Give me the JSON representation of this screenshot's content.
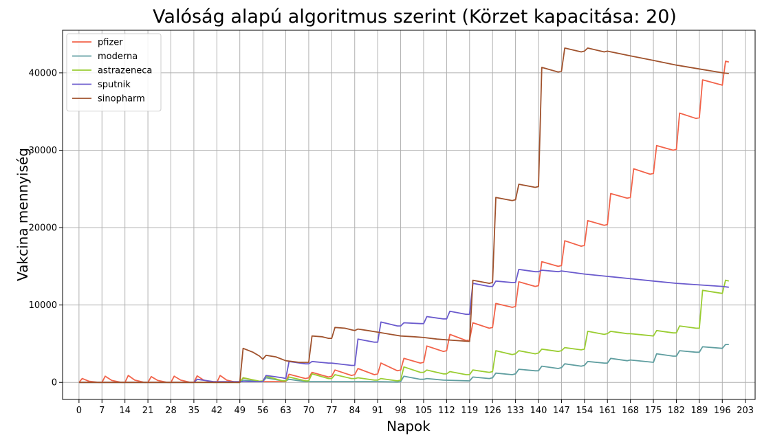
{
  "chart_data": {
    "type": "line",
    "title": "Valóság alapú algoritmus szerint (Körzet kapacitása: 20)",
    "xlabel": "Napok",
    "ylabel": "Vakcina mennyiség",
    "xlim": [
      -5,
      206
    ],
    "ylim": [
      -2200,
      45500
    ],
    "grid": true,
    "legend_position": "top-left",
    "x_ticks": [
      0,
      7,
      14,
      21,
      28,
      35,
      42,
      49,
      56,
      63,
      70,
      77,
      84,
      91,
      98,
      105,
      112,
      119,
      126,
      133,
      140,
      147,
      154,
      161,
      168,
      175,
      182,
      189,
      196,
      203
    ],
    "y_ticks": [
      0,
      10000,
      20000,
      30000,
      40000
    ],
    "series": [
      {
        "name": "pfizer",
        "color": "#f2634a",
        "points": [
          [
            0,
            0
          ],
          [
            1,
            500
          ],
          [
            3,
            150
          ],
          [
            6,
            0
          ],
          [
            7,
            0
          ],
          [
            8,
            800
          ],
          [
            10,
            250
          ],
          [
            13,
            0
          ],
          [
            14,
            0
          ],
          [
            15,
            900
          ],
          [
            17,
            300
          ],
          [
            20,
            0
          ],
          [
            21,
            0
          ],
          [
            22,
            750
          ],
          [
            24,
            250
          ],
          [
            27,
            0
          ],
          [
            28,
            0
          ],
          [
            29,
            800
          ],
          [
            31,
            300
          ],
          [
            34,
            0
          ],
          [
            35,
            0
          ],
          [
            36,
            850
          ],
          [
            38,
            300
          ],
          [
            41,
            0
          ],
          [
            42,
            0
          ],
          [
            43,
            900
          ],
          [
            45,
            300
          ],
          [
            48,
            0
          ],
          [
            49,
            0
          ],
          [
            50,
            600
          ],
          [
            55,
            100
          ],
          [
            63,
            100
          ],
          [
            64,
            1050
          ],
          [
            69,
            500
          ],
          [
            70,
            600
          ],
          [
            71,
            1300
          ],
          [
            76,
            700
          ],
          [
            77,
            800
          ],
          [
            78,
            1600
          ],
          [
            83,
            900
          ],
          [
            84,
            1000
          ],
          [
            85,
            1800
          ],
          [
            90,
            1000
          ],
          [
            91,
            1100
          ],
          [
            92,
            2500
          ],
          [
            97,
            1500
          ],
          [
            98,
            1600
          ],
          [
            99,
            3100
          ],
          [
            104,
            2500
          ],
          [
            105,
            2600
          ],
          [
            106,
            4700
          ],
          [
            111,
            4000
          ],
          [
            112,
            4100
          ],
          [
            113,
            6200
          ],
          [
            118,
            5400
          ],
          [
            119,
            5500
          ],
          [
            120,
            7700
          ],
          [
            125,
            7000
          ],
          [
            126,
            7100
          ],
          [
            127,
            10200
          ],
          [
            132,
            9700
          ],
          [
            133,
            9800
          ],
          [
            134,
            13000
          ],
          [
            139,
            12400
          ],
          [
            140,
            12500
          ],
          [
            141,
            15600
          ],
          [
            146,
            15000
          ],
          [
            147,
            15100
          ],
          [
            148,
            18300
          ],
          [
            153,
            17600
          ],
          [
            154,
            17700
          ],
          [
            155,
            20900
          ],
          [
            160,
            20300
          ],
          [
            161,
            20400
          ],
          [
            162,
            24400
          ],
          [
            167,
            23800
          ],
          [
            168,
            23900
          ],
          [
            169,
            27600
          ],
          [
            174,
            26900
          ],
          [
            175,
            27000
          ],
          [
            176,
            30600
          ],
          [
            181,
            30000
          ],
          [
            182,
            30100
          ],
          [
            183,
            34800
          ],
          [
            188,
            34100
          ],
          [
            189,
            34200
          ],
          [
            190,
            39100
          ],
          [
            196,
            38400
          ],
          [
            197,
            41500
          ],
          [
            198,
            41400
          ]
        ]
      },
      {
        "name": "moderna",
        "color": "#5f9ea0",
        "points": [
          [
            0,
            0
          ],
          [
            49,
            0
          ],
          [
            50,
            300
          ],
          [
            55,
            100
          ],
          [
            56,
            100
          ],
          [
            57,
            600
          ],
          [
            62,
            200
          ],
          [
            63,
            200
          ],
          [
            64,
            400
          ],
          [
            69,
            100
          ],
          [
            70,
            100
          ],
          [
            77,
            100
          ],
          [
            84,
            100
          ],
          [
            91,
            100
          ],
          [
            97,
            50
          ],
          [
            98,
            100
          ],
          [
            99,
            800
          ],
          [
            104,
            400
          ],
          [
            105,
            400
          ],
          [
            106,
            500
          ],
          [
            111,
            300
          ],
          [
            119,
            200
          ],
          [
            120,
            700
          ],
          [
            125,
            500
          ],
          [
            126,
            600
          ],
          [
            127,
            1200
          ],
          [
            132,
            1000
          ],
          [
            133,
            1100
          ],
          [
            134,
            1700
          ],
          [
            139,
            1500
          ],
          [
            140,
            1500
          ],
          [
            141,
            2100
          ],
          [
            146,
            1800
          ],
          [
            147,
            1900
          ],
          [
            148,
            2400
          ],
          [
            153,
            2100
          ],
          [
            154,
            2200
          ],
          [
            155,
            2700
          ],
          [
            160,
            2500
          ],
          [
            161,
            2500
          ],
          [
            162,
            3100
          ],
          [
            167,
            2800
          ],
          [
            168,
            2900
          ],
          [
            175,
            2600
          ],
          [
            176,
            3700
          ],
          [
            181,
            3400
          ],
          [
            182,
            3400
          ],
          [
            183,
            4100
          ],
          [
            188,
            3900
          ],
          [
            189,
            3900
          ],
          [
            190,
            4600
          ],
          [
            196,
            4400
          ],
          [
            197,
            4900
          ],
          [
            198,
            4900
          ]
        ]
      },
      {
        "name": "astrazeneca",
        "color": "#9acd32",
        "points": [
          [
            0,
            0
          ],
          [
            49,
            0
          ],
          [
            50,
            600
          ],
          [
            55,
            150
          ],
          [
            56,
            200
          ],
          [
            57,
            800
          ],
          [
            62,
            200
          ],
          [
            63,
            200
          ],
          [
            64,
            700
          ],
          [
            69,
            200
          ],
          [
            70,
            200
          ],
          [
            71,
            1100
          ],
          [
            76,
            500
          ],
          [
            77,
            500
          ],
          [
            78,
            1000
          ],
          [
            83,
            500
          ],
          [
            84,
            500
          ],
          [
            85,
            600
          ],
          [
            90,
            300
          ],
          [
            91,
            300
          ],
          [
            92,
            500
          ],
          [
            97,
            200
          ],
          [
            98,
            300
          ],
          [
            99,
            2000
          ],
          [
            104,
            1300
          ],
          [
            105,
            1300
          ],
          [
            106,
            1600
          ],
          [
            111,
            1100
          ],
          [
            112,
            1100
          ],
          [
            113,
            1400
          ],
          [
            118,
            1000
          ],
          [
            119,
            1000
          ],
          [
            120,
            1600
          ],
          [
            125,
            1300
          ],
          [
            126,
            1400
          ],
          [
            127,
            4100
          ],
          [
            132,
            3600
          ],
          [
            133,
            3700
          ],
          [
            134,
            4100
          ],
          [
            139,
            3700
          ],
          [
            140,
            3800
          ],
          [
            141,
            4300
          ],
          [
            146,
            4000
          ],
          [
            147,
            4100
          ],
          [
            148,
            4500
          ],
          [
            153,
            4200
          ],
          [
            154,
            4300
          ],
          [
            155,
            6600
          ],
          [
            160,
            6200
          ],
          [
            161,
            6300
          ],
          [
            162,
            6600
          ],
          [
            167,
            6300
          ],
          [
            168,
            6300
          ],
          [
            175,
            6000
          ],
          [
            176,
            6700
          ],
          [
            181,
            6400
          ],
          [
            182,
            6400
          ],
          [
            183,
            7300
          ],
          [
            188,
            7000
          ],
          [
            189,
            7000
          ],
          [
            190,
            11900
          ],
          [
            196,
            11500
          ],
          [
            197,
            13200
          ],
          [
            198,
            13100
          ]
        ]
      },
      {
        "name": "sputnik",
        "color": "#6a5acd",
        "points": [
          [
            0,
            0
          ],
          [
            35,
            0
          ],
          [
            36,
            400
          ],
          [
            41,
            100
          ],
          [
            42,
            100
          ],
          [
            49,
            100
          ],
          [
            56,
            100
          ],
          [
            57,
            900
          ],
          [
            62,
            600
          ],
          [
            63,
            500
          ],
          [
            64,
            2700
          ],
          [
            69,
            2400
          ],
          [
            70,
            2400
          ],
          [
            71,
            2700
          ],
          [
            76,
            2500
          ],
          [
            77,
            2500
          ],
          [
            83,
            2200
          ],
          [
            84,
            2200
          ],
          [
            85,
            5600
          ],
          [
            90,
            5200
          ],
          [
            91,
            5200
          ],
          [
            92,
            7800
          ],
          [
            97,
            7300
          ],
          [
            98,
            7300
          ],
          [
            99,
            7700
          ],
          [
            104,
            7600
          ],
          [
            105,
            7600
          ],
          [
            106,
            8500
          ],
          [
            111,
            8200
          ],
          [
            112,
            8200
          ],
          [
            113,
            9200
          ],
          [
            118,
            8800
          ],
          [
            119,
            8800
          ],
          [
            120,
            12800
          ],
          [
            125,
            12400
          ],
          [
            126,
            12400
          ],
          [
            127,
            13100
          ],
          [
            132,
            12900
          ],
          [
            133,
            12900
          ],
          [
            134,
            14600
          ],
          [
            139,
            14300
          ],
          [
            140,
            14300
          ],
          [
            141,
            14500
          ],
          [
            146,
            14300
          ],
          [
            147,
            14400
          ],
          [
            154,
            14000
          ],
          [
            161,
            13700
          ],
          [
            168,
            13400
          ],
          [
            175,
            13100
          ],
          [
            182,
            12800
          ],
          [
            189,
            12600
          ],
          [
            196,
            12400
          ],
          [
            198,
            12300
          ]
        ]
      },
      {
        "name": "sinopharm",
        "color": "#a0522d",
        "points": [
          [
            0,
            0
          ],
          [
            48,
            0
          ],
          [
            49,
            0
          ],
          [
            50,
            4400
          ],
          [
            53,
            3900
          ],
          [
            55,
            3400
          ],
          [
            56,
            3000
          ],
          [
            57,
            3500
          ],
          [
            60,
            3300
          ],
          [
            63,
            2800
          ],
          [
            67,
            2600
          ],
          [
            70,
            2600
          ],
          [
            71,
            6000
          ],
          [
            74,
            5900
          ],
          [
            76,
            5700
          ],
          [
            77,
            5700
          ],
          [
            78,
            7100
          ],
          [
            81,
            7000
          ],
          [
            83,
            6800
          ],
          [
            84,
            6700
          ],
          [
            85,
            6900
          ],
          [
            88,
            6700
          ],
          [
            91,
            6500
          ],
          [
            95,
            6200
          ],
          [
            98,
            6000
          ],
          [
            102,
            5900
          ],
          [
            105,
            5800
          ],
          [
            109,
            5600
          ],
          [
            112,
            5500
          ],
          [
            119,
            5300
          ],
          [
            120,
            13200
          ],
          [
            125,
            12800
          ],
          [
            126,
            12900
          ],
          [
            127,
            23900
          ],
          [
            132,
            23500
          ],
          [
            133,
            23600
          ],
          [
            134,
            25600
          ],
          [
            139,
            25200
          ],
          [
            140,
            25300
          ],
          [
            141,
            40700
          ],
          [
            146,
            40100
          ],
          [
            147,
            40200
          ],
          [
            148,
            43200
          ],
          [
            153,
            42700
          ],
          [
            154,
            42800
          ],
          [
            155,
            43200
          ],
          [
            160,
            42700
          ],
          [
            161,
            42800
          ],
          [
            168,
            42200
          ],
          [
            175,
            41600
          ],
          [
            182,
            41000
          ],
          [
            189,
            40500
          ],
          [
            196,
            40000
          ],
          [
            198,
            39900
          ]
        ]
      }
    ]
  }
}
